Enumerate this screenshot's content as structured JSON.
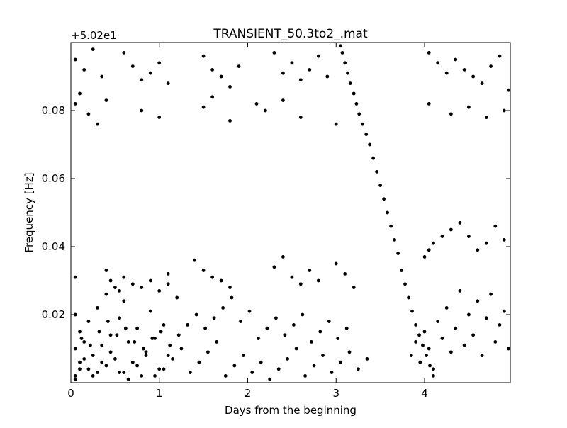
{
  "chart_data": {
    "type": "scatter",
    "title": "TRANSIENT_50.3to2_.mat",
    "xlabel": "Days from the beginning",
    "ylabel": "Frequency [Hz]",
    "y_offset_label": "+5.02e1",
    "xlim": [
      0,
      4.97
    ],
    "ylim": [
      0.0,
      0.1
    ],
    "x_ticks": [
      0,
      1,
      2,
      3,
      4
    ],
    "x_tick_labels": [
      "0",
      "1",
      "2",
      "3",
      "4"
    ],
    "y_ticks": [
      0.02,
      0.04,
      0.06,
      0.08
    ],
    "y_tick_labels": [
      "0.02",
      "0.04",
      "0.06",
      "0.08"
    ],
    "grid": false,
    "marker_color": "#000000",
    "series": [
      {
        "x": [
          0.05,
          0.05,
          0.05,
          0.05,
          0.1,
          0.1,
          0.15,
          0.2,
          0.2,
          0.25,
          0.3,
          0.3,
          0.35,
          0.4,
          0.4,
          0.45,
          0.5,
          0.55,
          0.6,
          0.6,
          0.65,
          0.7,
          0.75,
          0.8,
          0.85,
          0.9,
          0.95,
          1.0,
          1.05,
          1.1,
          1.1,
          0.05,
          0.1,
          0.15,
          0.25,
          0.35,
          0.45,
          0.55,
          0.65,
          0.75,
          0.85,
          0.95,
          1.05,
          1.15,
          1.25,
          1.35,
          1.45,
          1.55,
          1.65,
          1.75,
          1.85,
          1.95,
          2.05,
          2.15,
          2.25,
          2.35,
          2.45,
          2.55,
          2.65,
          2.75,
          2.85,
          2.95,
          3.05,
          3.15,
          3.25,
          3.35,
          0.12,
          0.22,
          0.32,
          0.42,
          0.52,
          0.62,
          0.72,
          0.82,
          0.92,
          1.02,
          1.12,
          1.22,
          1.32,
          1.42,
          1.52,
          1.62,
          1.72,
          1.82,
          1.92,
          2.02,
          2.12,
          2.22,
          2.32,
          2.42,
          2.52,
          2.62,
          2.72,
          2.82,
          2.92,
          3.02,
          3.12,
          0.4,
          0.45,
          0.5,
          0.55,
          0.6,
          0.7,
          0.8,
          0.9,
          1.0,
          1.1,
          1.2,
          1.4,
          1.5,
          1.6,
          1.7,
          1.8,
          2.3,
          2.4,
          2.5,
          2.6,
          2.7,
          2.8,
          3.0,
          3.1,
          3.2,
          3.05,
          3.07,
          3.1,
          3.13,
          3.16,
          3.2,
          3.23,
          3.26,
          3.3,
          3.34,
          3.38,
          3.42,
          3.46,
          3.5,
          3.54,
          3.58,
          3.62,
          3.66,
          3.7,
          3.74,
          3.78,
          3.82,
          3.86,
          3.9,
          3.94,
          3.98,
          4.02,
          4.06,
          4.1,
          3.85,
          3.9,
          3.95,
          4.0,
          4.05,
          4.1,
          4.15,
          4.2,
          4.25,
          4.3,
          4.35,
          4.4,
          4.45,
          4.5,
          4.55,
          4.6,
          4.65,
          4.7,
          4.75,
          4.8,
          4.85,
          4.9,
          4.95,
          4.0,
          4.05,
          4.1,
          4.2,
          4.3,
          4.4,
          4.5,
          4.6,
          4.7,
          4.8,
          4.9,
          0.05,
          0.15,
          0.25,
          0.35,
          0.6,
          0.7,
          0.8,
          0.9,
          1.0,
          1.1,
          1.5,
          1.6,
          1.7,
          1.8,
          1.9,
          2.3,
          2.4,
          2.5,
          2.6,
          2.7,
          2.8,
          2.9,
          4.05,
          4.15,
          4.25,
          4.35,
          4.45,
          4.55,
          4.65,
          4.75,
          4.85,
          4.95,
          0.05,
          0.1,
          0.2,
          0.3,
          0.4,
          0.8,
          1.0,
          1.5,
          1.6,
          1.8,
          2.1,
          2.2,
          2.4,
          2.6,
          3.0,
          4.05,
          4.3,
          4.5,
          4.7,
          4.9
        ],
        "y": [
          0.002,
          0.01,
          0.02,
          0.031,
          0.006,
          0.015,
          0.012,
          0.004,
          0.018,
          0.008,
          0.003,
          0.022,
          0.011,
          0.005,
          0.026,
          0.014,
          0.007,
          0.019,
          0.003,
          0.024,
          0.012,
          0.006,
          0.016,
          0.002,
          0.009,
          0.021,
          0.013,
          0.004,
          0.017,
          0.008,
          0.029,
          0.001,
          0.004,
          0.007,
          0.002,
          0.006,
          0.009,
          0.003,
          0.001,
          0.005,
          0.008,
          0.002,
          0.004,
          0.007,
          0.01,
          0.003,
          0.006,
          0.009,
          0.012,
          0.002,
          0.005,
          0.008,
          0.003,
          0.006,
          0.001,
          0.004,
          0.007,
          0.01,
          0.002,
          0.005,
          0.008,
          0.003,
          0.006,
          0.009,
          0.004,
          0.007,
          0.013,
          0.011,
          0.015,
          0.018,
          0.014,
          0.016,
          0.012,
          0.01,
          0.013,
          0.015,
          0.011,
          0.014,
          0.017,
          0.02,
          0.016,
          0.019,
          0.022,
          0.025,
          0.018,
          0.021,
          0.013,
          0.016,
          0.019,
          0.014,
          0.017,
          0.02,
          0.012,
          0.015,
          0.018,
          0.013,
          0.016,
          0.033,
          0.03,
          0.028,
          0.027,
          0.031,
          0.029,
          0.028,
          0.03,
          0.027,
          0.032,
          0.025,
          0.036,
          0.033,
          0.031,
          0.03,
          0.028,
          0.034,
          0.037,
          0.031,
          0.029,
          0.033,
          0.03,
          0.035,
          0.032,
          0.028,
          0.099,
          0.097,
          0.094,
          0.091,
          0.088,
          0.085,
          0.082,
          0.079,
          0.076,
          0.073,
          0.07,
          0.066,
          0.062,
          0.058,
          0.054,
          0.05,
          0.046,
          0.042,
          0.038,
          0.033,
          0.029,
          0.025,
          0.021,
          0.017,
          0.014,
          0.011,
          0.008,
          0.005,
          0.002,
          0.008,
          0.012,
          0.006,
          0.015,
          0.01,
          0.004,
          0.018,
          0.013,
          0.022,
          0.009,
          0.016,
          0.027,
          0.011,
          0.02,
          0.014,
          0.024,
          0.008,
          0.019,
          0.026,
          0.012,
          0.017,
          0.021,
          0.01,
          0.037,
          0.039,
          0.041,
          0.043,
          0.045,
          0.047,
          0.043,
          0.039,
          0.041,
          0.046,
          0.042,
          0.095,
          0.092,
          0.098,
          0.09,
          0.097,
          0.093,
          0.089,
          0.091,
          0.094,
          0.088,
          0.096,
          0.092,
          0.09,
          0.087,
          0.093,
          0.097,
          0.091,
          0.094,
          0.089,
          0.092,
          0.096,
          0.09,
          0.097,
          0.094,
          0.091,
          0.095,
          0.092,
          0.09,
          0.088,
          0.093,
          0.096,
          0.086,
          0.082,
          0.085,
          0.079,
          0.076,
          0.083,
          0.08,
          0.078,
          0.081,
          0.084,
          0.077,
          0.082,
          0.08,
          0.083,
          0.078,
          0.076,
          0.082,
          0.079,
          0.081,
          0.078,
          0.08
        ]
      }
    ]
  }
}
